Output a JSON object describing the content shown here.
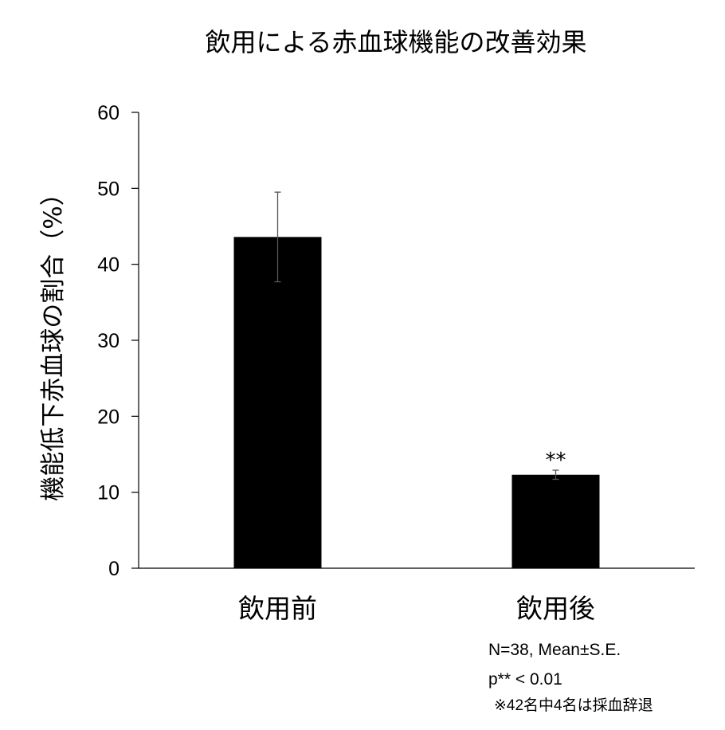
{
  "chart_data": {
    "type": "bar",
    "title": "飲用による赤血球機能の改善効果",
    "xlabel": "",
    "ylabel": "機能低下赤血球の割合（%）",
    "ylim": [
      0,
      60
    ],
    "yticks": [
      0,
      10,
      20,
      30,
      40,
      50,
      60
    ],
    "categories": [
      "飲用前",
      "飲用後"
    ],
    "values": [
      43.6,
      12.3
    ],
    "errors": [
      5.9,
      0.6
    ],
    "significance": [
      "",
      "**"
    ],
    "bar_color": "#000000",
    "grid": false,
    "legend": "none"
  },
  "notes": {
    "line1": "N=38, Mean±S.E.",
    "line2": "p** < 0.01",
    "line3": "※42名中4名は採血辞退"
  }
}
